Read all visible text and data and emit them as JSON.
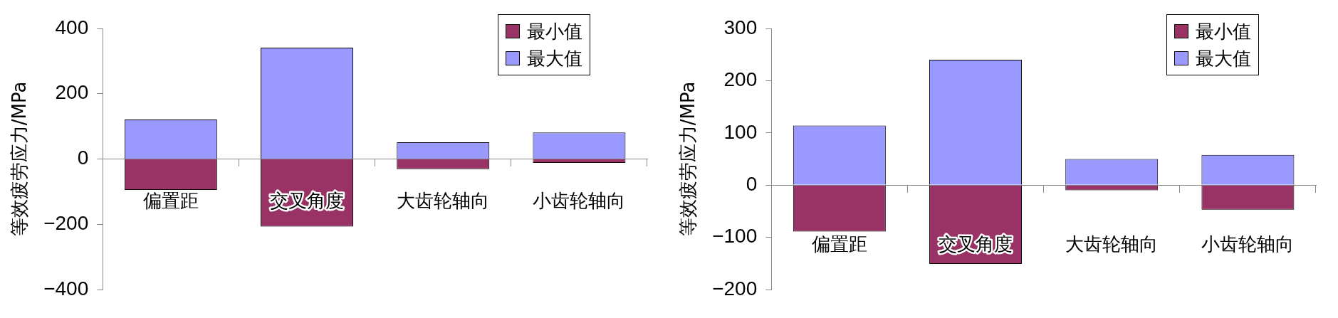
{
  "chart_data": [
    {
      "type": "bar",
      "ylabel": "等效疲劳应力/MPa",
      "categories": [
        "偏置距",
        "交叉角度",
        "大齿轮轴向",
        "小齿轮轴向"
      ],
      "stacked": true,
      "legend": "top right",
      "grid": false,
      "ylim": [
        -400,
        400
      ],
      "yticks": [
        -400,
        -200,
        0,
        200,
        400
      ],
      "series": [
        {
          "name": "最小值",
          "color": "#993366",
          "values": [
            -95,
            -207,
            -31,
            -12
          ]
        },
        {
          "name": "最大值",
          "color": "#9999ff",
          "values": [
            121,
            341,
            51,
            81
          ]
        }
      ]
    },
    {
      "type": "bar",
      "ylabel": "等效疲劳应力/MPa",
      "categories": [
        "偏置距",
        "交叉角度",
        "大齿轮轴向",
        "小齿轮轴向"
      ],
      "stacked": true,
      "legend": "top right",
      "grid": false,
      "ylim": [
        -200,
        300
      ],
      "yticks": [
        -200,
        -100,
        0,
        100,
        200,
        300
      ],
      "series": [
        {
          "name": "最小值",
          "color": "#993366",
          "values": [
            -89,
            -151,
            -10,
            -47
          ]
        },
        {
          "name": "最大值",
          "color": "#9999ff",
          "values": [
            114,
            240,
            50,
            58
          ]
        }
      ]
    }
  ]
}
